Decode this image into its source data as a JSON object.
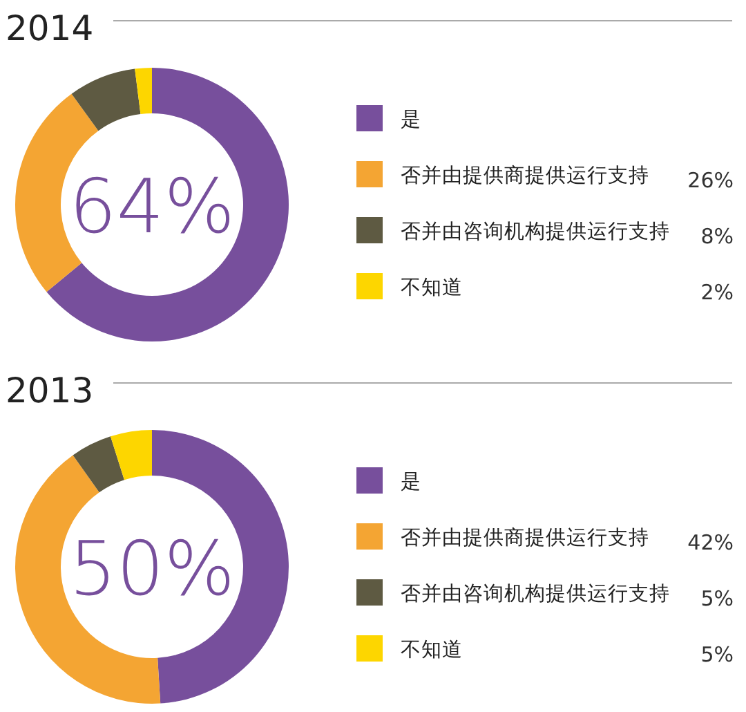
{
  "chart_data": [
    {
      "type": "donut",
      "title": "2014",
      "categories": [
        "是",
        "否并由提供商提供运行支持",
        "否并由咨询机构提供运行支持",
        "不知道"
      ],
      "values": [
        64,
        26,
        8,
        2
      ],
      "colors": [
        "#774f9c",
        "#f4a533",
        "#5e5a42",
        "#fdd600"
      ],
      "value_labels": [
        null,
        "26%",
        "8%",
        "2%"
      ],
      "annotations": [
        "64%"
      ],
      "legend": "right"
    },
    {
      "type": "donut",
      "title": "2013",
      "categories": [
        "是",
        "否并由提供商提供运行支持",
        "否并由咨询机构提供运行支持",
        "不知道"
      ],
      "values": [
        50,
        42,
        5,
        5
      ],
      "colors": [
        "#774f9c",
        "#f4a533",
        "#5e5a42",
        "#fdd600"
      ],
      "value_labels": [
        null,
        "42%",
        "5%",
        "5%"
      ],
      "annotations": [
        "50%"
      ],
      "legend": "right"
    }
  ]
}
